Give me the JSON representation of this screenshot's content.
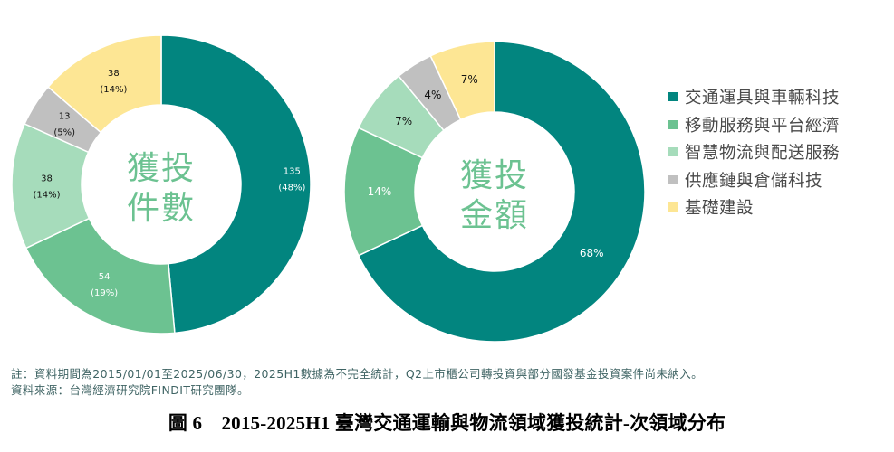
{
  "chart_data": [
    {
      "type": "pie",
      "variant": "donut",
      "title": "獲投件數",
      "center_label_lines": [
        "獲投",
        "件數"
      ],
      "categories": [
        "交通運具與車輛科技",
        "移動服務與平台經濟",
        "智慧物流與配送服務",
        "供應鏈與倉儲科技",
        "基礎建設"
      ],
      "values": [
        135,
        54,
        38,
        13,
        38
      ],
      "percentages": [
        48,
        19,
        14,
        5,
        14
      ],
      "labels": [
        [
          "135",
          "(48%)"
        ],
        [
          "54",
          "(19%)"
        ],
        [
          "38",
          "(14%)"
        ],
        [
          "13",
          "(5%)"
        ],
        [
          "38",
          "(14%)"
        ]
      ],
      "start_angle": "12 o'clock",
      "direction": "clockwise",
      "center": [
        178,
        204
      ],
      "outer_radius": 165,
      "inner_radius": 88
    },
    {
      "type": "pie",
      "variant": "donut",
      "title": "獲投金額",
      "center_label_lines": [
        "獲投",
        "金額"
      ],
      "categories": [
        "交通運具與車輛科技",
        "移動服務與平台經濟",
        "智慧物流與配送服務",
        "供應鏈與倉儲科技",
        "基礎建設"
      ],
      "values": [
        68,
        14,
        7,
        4,
        7
      ],
      "percentages": [
        68,
        14,
        7,
        4,
        7
      ],
      "labels": [
        [
          "68%"
        ],
        [
          "14%"
        ],
        [
          "7%"
        ],
        [
          "4%"
        ],
        [
          "7%"
        ]
      ],
      "start_angle": "12 o'clock",
      "direction": "clockwise",
      "center": [
        546,
        212
      ],
      "outer_radius": 166,
      "inner_radius": 88
    }
  ],
  "colors": {
    "series": [
      "#02857f",
      "#6cc291",
      "#a6dcbb",
      "#c0c0c0",
      "#fde694"
    ],
    "label_dark": "#111111",
    "label_light": "#ffffff",
    "center_text": "#6cc291",
    "legend_text": "#4a4a4a",
    "note_text": "#3f6464"
  },
  "label_colors": [
    "#ffffff",
    "#ffffff",
    "#111111",
    "#111111",
    "#111111"
  ],
  "legend": {
    "position": "right",
    "items": [
      {
        "label": "交通運具與車輛科技",
        "color": "#02857f"
      },
      {
        "label": "移動服務與平台經濟",
        "color": "#6cc291"
      },
      {
        "label": "智慧物流與配送服務",
        "color": "#a6dcbb"
      },
      {
        "label": "供應鏈與倉儲科技",
        "color": "#c0c0c0"
      },
      {
        "label": "基礎建設",
        "color": "#fde694"
      }
    ]
  },
  "notes": {
    "note": "註：資料期間為2015/01/01至2025/06/30，2025H1數據為不完全統計，Q2上市櫃公司轉投資與部分國發基金投資案件尚未納入。",
    "source": "資料來源：台灣經濟研究院FINDIT研究團隊。"
  },
  "caption": "圖 6　2015-2025H1 臺灣交通運輸與物流領域獲投統計-次領域分布"
}
